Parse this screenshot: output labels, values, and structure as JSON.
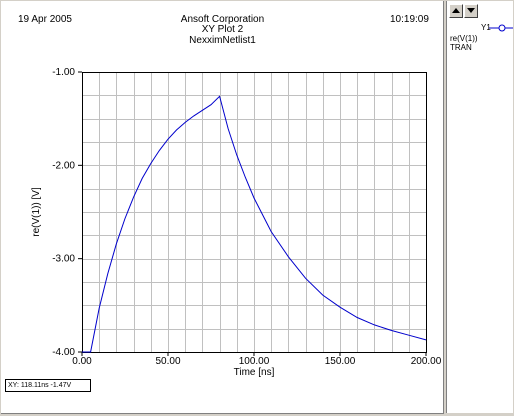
{
  "header": {
    "date": "19 Apr 2005",
    "time": "10:19:09",
    "company": "Ansoft Corporation",
    "title": "XY Plot 2",
    "subtitle": "NexximNetlist1"
  },
  "status": {
    "text": "XY: 118.11ns -1.47V"
  },
  "legend": {
    "trace_name": "Y1",
    "expression": "re(V(1))",
    "sweep": "TRAN"
  },
  "colors": {
    "trace": "#0000cc",
    "grid": "#c0c0c0",
    "background": "#ffffff"
  },
  "icons": {
    "scroll_up": "triangle-up-icon",
    "scroll_down": "triangle-down-icon"
  },
  "chart_data": {
    "type": "line",
    "xlabel": "Time [ns]",
    "ylabel": "re(V(1)) [V]",
    "xlim": [
      0,
      200
    ],
    "ylim": [
      -4,
      -1
    ],
    "x_ticks": [
      0,
      50,
      100,
      150,
      200
    ],
    "x_tick_labels": [
      "0.00",
      "50.00",
      "100.00",
      "150.00",
      "200.00"
    ],
    "y_ticks": [
      -4,
      -3,
      -2,
      -1
    ],
    "y_tick_labels": [
      "-4.00",
      "-3.00",
      "-2.00",
      "-1.00"
    ],
    "grid": true,
    "series": [
      {
        "name": "Y1",
        "x": [
          0,
          5,
          10,
          15,
          20,
          25,
          30,
          35,
          40,
          45,
          50,
          55,
          60,
          65,
          70,
          75,
          80,
          85,
          90,
          95,
          100,
          110,
          120,
          130,
          140,
          150,
          160,
          170,
          180,
          190,
          200
        ],
        "y": [
          -4.0,
          -4.0,
          -3.53,
          -3.16,
          -2.84,
          -2.57,
          -2.34,
          -2.14,
          -1.98,
          -1.84,
          -1.72,
          -1.62,
          -1.54,
          -1.47,
          -1.41,
          -1.35,
          -1.26,
          -1.61,
          -1.89,
          -2.13,
          -2.35,
          -2.71,
          -2.98,
          -3.21,
          -3.39,
          -3.52,
          -3.63,
          -3.71,
          -3.77,
          -3.82,
          -3.87
        ]
      }
    ]
  }
}
